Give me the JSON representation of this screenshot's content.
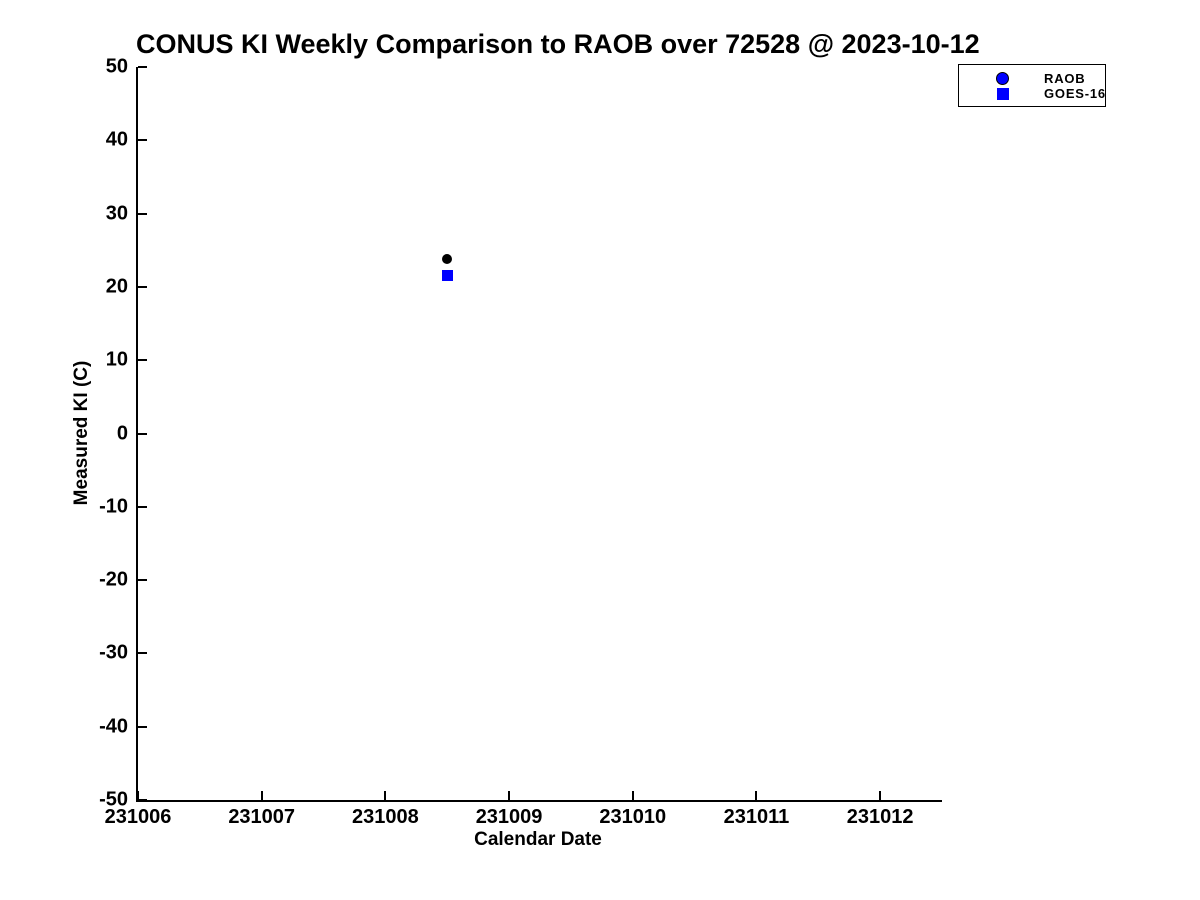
{
  "chart_data": {
    "type": "scatter",
    "title": "CONUS KI Weekly Comparison to RAOB over 72528 @ 2023-10-12",
    "xlabel": "Calendar Date",
    "ylabel": "Measured KI (C)",
    "xlim": [
      231006,
      231012.5
    ],
    "ylim": [
      -50,
      50
    ],
    "x_ticks": [
      231006,
      231007,
      231008,
      231009,
      231010,
      231011,
      231012
    ],
    "y_ticks": [
      50,
      40,
      30,
      20,
      10,
      0,
      -10,
      -20,
      -30,
      -40,
      -50
    ],
    "grid": false,
    "background_color": "#ffffff",
    "axis_color": "#000000",
    "legend": {
      "position": "upper right",
      "entries": [
        "RAOB",
        "GOES-16"
      ]
    },
    "series": [
      {
        "name": "RAOB",
        "marker": "circle",
        "plot_marker_color": "#000000",
        "legend_marker_color": "#0000ff",
        "legend_marker_edge_color": "#000000",
        "points": [
          {
            "x": 231008.5,
            "y": 23.8
          }
        ]
      },
      {
        "name": "GOES-16",
        "marker": "square",
        "plot_marker_color": "#0000ff",
        "legend_marker_color": "#0000ff",
        "legend_marker_edge_color": "#0000ff",
        "points": [
          {
            "x": 231008.5,
            "y": 21.5
          }
        ]
      }
    ]
  }
}
